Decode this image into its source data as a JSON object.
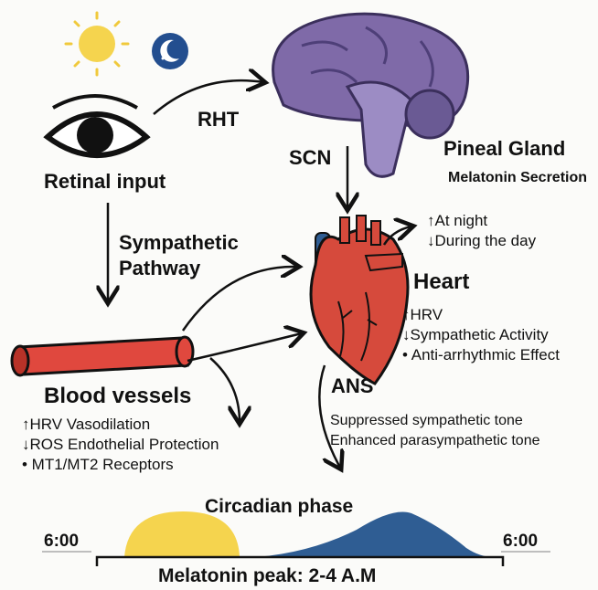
{
  "labels": {
    "rht": "RHT",
    "scn": "SCN",
    "retinal_input": "Retinal input",
    "pineal_gland": "Pineal Gland",
    "melatonin_secretion": "Melatonin Secretion",
    "sympathetic_pathway": [
      "Sympathetic",
      "Pathway"
    ],
    "heart": "Heart",
    "blood_vessels": "Blood vessels",
    "ans": "ANS",
    "circadian_phase": "Circadian phase",
    "time_left": "6:00",
    "time_right": "6:00",
    "melatonin_peak": "Melatonin peak: 2-4 A.M"
  },
  "secretion_notes": [
    "↑At night",
    "↓During the day"
  ],
  "heart_effects": [
    "↑HRV",
    "↓Sympathetic Activity",
    "•  Anti-arrhythmic Effect"
  ],
  "vessel_effects": [
    "↑HRV  Vasodilation",
    "↓ROS  Endothelial Protection",
    "•  MT1/MT2 Receptors"
  ],
  "ans_effects": [
    "Suppressed sympathetic tone",
    "Enhanced parasympathetic tone"
  ],
  "colors": {
    "sun": "#f5d44e",
    "night": "#2f5d93",
    "brain": "#7f6aa8",
    "heart": "#d64a3c",
    "vessel": "#e0483e"
  },
  "icons": [
    "sun-icon",
    "moon-icon",
    "eye-icon",
    "brain-icon",
    "heart-icon",
    "blood-vessel-icon"
  ]
}
